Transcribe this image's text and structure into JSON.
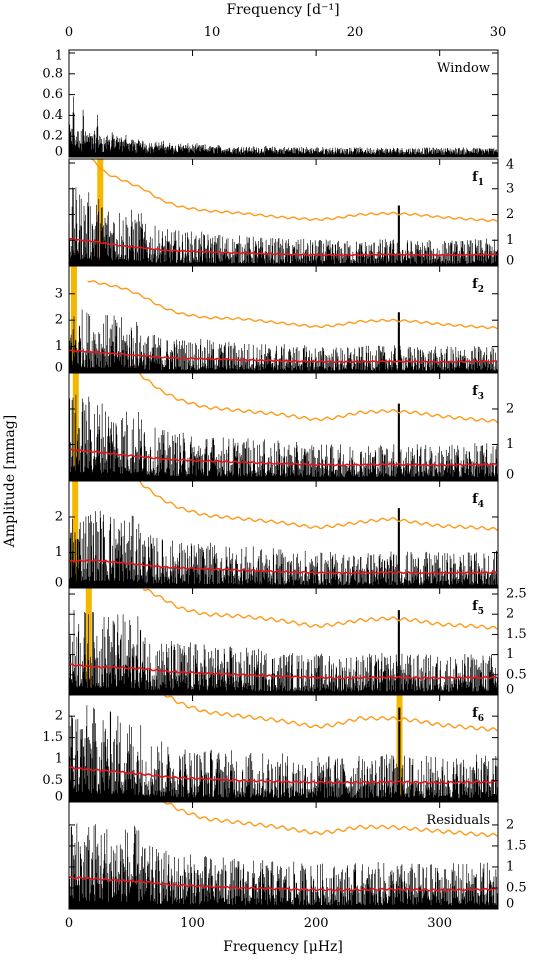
{
  "figure": {
    "xlabel_bottom": "Frequency [μHz]",
    "xlabel_top": "Frequency [d⁻¹]",
    "ylabel": "Amplitude [mmag]",
    "x_ticks_bottom": [
      0,
      100,
      200,
      300
    ],
    "x_ticks_top": [
      0,
      10,
      20,
      30
    ],
    "colors": {
      "spectrum": "#000000",
      "noise": "#e8141e",
      "significance": "#ff9a1a",
      "highlight": "#f5b800"
    }
  },
  "chart_data": [
    {
      "type": "line",
      "panel": "window",
      "label": "Window",
      "label_sub": "",
      "xlim": [
        0,
        347.2
      ],
      "ylim": [
        0,
        1.0
      ],
      "yticks": [
        0,
        0.2,
        0.4,
        0.6,
        0.8,
        1
      ],
      "ytick_labels": [
        "0",
        "0.2",
        "0.4",
        "0.6",
        "0.8",
        "1"
      ],
      "ytick_side": "left",
      "series": [
        {
          "kind": "spectrum",
          "peaks": [
            [
              3.6,
              0.68
            ],
            [
              11.5,
              0.52
            ],
            [
              23.0,
              0.45
            ],
            [
              35,
              0.28
            ],
            [
              46,
              0.25
            ],
            [
              58,
              0.15
            ],
            [
              70,
              0.12
            ],
            [
              81,
              0.1
            ],
            [
              92,
              0.09
            ],
            [
              115,
              0.07
            ],
            [
              138,
              0.06
            ],
            [
              150,
              0.08
            ],
            [
              185,
              0.06
            ],
            [
              230,
              0.06
            ],
            [
              300,
              0.05
            ],
            [
              345,
              0.04
            ]
          ],
          "floor": 0.07,
          "decay": 60
        }
      ]
    },
    {
      "type": "line",
      "panel": "f1",
      "label": "f",
      "label_sub": "1",
      "xlim": [
        0,
        347.2
      ],
      "ylim": [
        0,
        4
      ],
      "yticks": [
        0,
        1,
        2,
        3,
        4
      ],
      "ytick_labels": [
        "0",
        "1",
        "2",
        "3",
        "4"
      ],
      "ytick_side": "right",
      "highlight_x": [
        25.3
      ],
      "significance": {
        "x": [
          15,
          30,
          45,
          60,
          75,
          90,
          110,
          140,
          170,
          200,
          215,
          235,
          260,
          280,
          300,
          330,
          347
        ],
        "y": [
          4.3,
          3.6,
          3.3,
          3.0,
          2.55,
          2.3,
          2.15,
          2.05,
          1.9,
          1.8,
          1.85,
          2.0,
          2.05,
          2.0,
          1.9,
          1.8,
          1.75
        ]
      },
      "noise": {
        "x": [
          0,
          20,
          40,
          60,
          80,
          100,
          140,
          180,
          220,
          260,
          300,
          347
        ],
        "y": [
          1.05,
          0.95,
          0.8,
          0.7,
          0.6,
          0.57,
          0.5,
          0.45,
          0.42,
          0.45,
          0.42,
          0.45
        ]
      },
      "spectrum_peak": 3.95,
      "extra_peaks": [
        [
          267,
          2.35
        ]
      ]
    },
    {
      "type": "line",
      "panel": "f2",
      "label": "f",
      "label_sub": "2",
      "xlim": [
        0,
        347.2
      ],
      "ylim": [
        0,
        3.9
      ],
      "yticks": [
        0,
        1,
        2,
        3
      ],
      "ytick_labels": [
        "0",
        "1",
        "2",
        "3"
      ],
      "ytick_side": "left",
      "highlight_x": [
        4.0
      ],
      "significance": {
        "x": [
          15,
          30,
          45,
          60,
          75,
          90,
          110,
          140,
          170,
          200,
          215,
          235,
          260,
          280,
          300,
          330,
          347
        ],
        "y": [
          3.5,
          3.35,
          3.2,
          2.9,
          2.5,
          2.25,
          2.1,
          2.05,
          1.9,
          1.75,
          1.8,
          1.95,
          2.0,
          1.95,
          1.85,
          1.75,
          1.7
        ]
      },
      "noise": {
        "x": [
          0,
          20,
          40,
          60,
          80,
          100,
          140,
          180,
          220,
          260,
          300,
          347
        ],
        "y": [
          0.85,
          0.8,
          0.72,
          0.65,
          0.58,
          0.55,
          0.5,
          0.45,
          0.42,
          0.44,
          0.42,
          0.44
        ]
      },
      "spectrum_peak": 3.8,
      "extra_peaks": [
        [
          267,
          2.3
        ]
      ]
    },
    {
      "type": "line",
      "panel": "f3",
      "label": "f",
      "label_sub": "3",
      "xlim": [
        0,
        347.2
      ],
      "ylim": [
        0,
        2.9
      ],
      "yticks": [
        0,
        1,
        2
      ],
      "ytick_labels": [
        "0",
        "1",
        "2"
      ],
      "ytick_side": "right",
      "highlight_x": [
        5.5
      ],
      "significance": {
        "x": [
          50,
          60,
          75,
          90,
          110,
          140,
          170,
          200,
          215,
          235,
          260,
          280,
          300,
          330,
          347
        ],
        "y": [
          3.2,
          2.9,
          2.5,
          2.25,
          2.05,
          1.95,
          1.85,
          1.7,
          1.75,
          1.9,
          1.95,
          1.9,
          1.8,
          1.7,
          1.65
        ]
      },
      "noise": {
        "x": [
          0,
          20,
          40,
          60,
          80,
          100,
          140,
          180,
          220,
          260,
          300,
          347
        ],
        "y": [
          0.85,
          0.8,
          0.72,
          0.65,
          0.58,
          0.55,
          0.5,
          0.45,
          0.42,
          0.44,
          0.42,
          0.44
        ]
      },
      "spectrum_peak": 2.85,
      "extra_peaks": [
        [
          267,
          2.15
        ]
      ]
    },
    {
      "type": "line",
      "panel": "f4",
      "label": "f",
      "label_sub": "4",
      "xlim": [
        0,
        347.2
      ],
      "ylim": [
        0,
        2.9
      ],
      "yticks": [
        0,
        1,
        2
      ],
      "ytick_labels": [
        "0",
        "1",
        "2"
      ],
      "ytick_side": "left",
      "highlight_x": [
        5.0
      ],
      "significance": {
        "x": [
          50,
          60,
          75,
          90,
          110,
          140,
          170,
          200,
          215,
          235,
          260,
          280,
          300,
          330,
          347
        ],
        "y": [
          3.2,
          2.9,
          2.5,
          2.25,
          2.05,
          1.95,
          1.85,
          1.7,
          1.75,
          1.85,
          1.95,
          1.85,
          1.75,
          1.7,
          1.65
        ]
      },
      "noise": {
        "x": [
          0,
          20,
          40,
          60,
          80,
          100,
          140,
          180,
          220,
          260,
          300,
          347
        ],
        "y": [
          0.75,
          0.78,
          0.72,
          0.65,
          0.58,
          0.55,
          0.5,
          0.45,
          0.42,
          0.44,
          0.42,
          0.44
        ]
      },
      "spectrum_peak": 2.6,
      "extra_peaks": [
        [
          267,
          2.25
        ]
      ]
    },
    {
      "type": "line",
      "panel": "f5",
      "label": "f",
      "label_sub": "5",
      "xlim": [
        0,
        347.2
      ],
      "ylim": [
        0,
        2.55
      ],
      "yticks": [
        0.5,
        1,
        1.5,
        2,
        2.5
      ],
      "ytick_labels": [
        "0.5",
        "1",
        "1.5",
        "2",
        "2.5"
      ],
      "ytick_side": "right",
      "zero_label": "0",
      "highlight_x": [
        16.0
      ],
      "significance": {
        "x": [
          60,
          75,
          90,
          110,
          140,
          170,
          200,
          215,
          235,
          260,
          280,
          300,
          330,
          347
        ],
        "y": [
          2.65,
          2.4,
          2.15,
          2.0,
          1.95,
          1.85,
          1.7,
          1.75,
          1.85,
          1.9,
          1.85,
          1.75,
          1.7,
          1.65
        ]
      },
      "noise": {
        "x": [
          0,
          20,
          40,
          60,
          80,
          100,
          140,
          180,
          220,
          260,
          300,
          347
        ],
        "y": [
          0.75,
          0.7,
          0.68,
          0.65,
          0.58,
          0.55,
          0.5,
          0.45,
          0.42,
          0.44,
          0.42,
          0.44
        ]
      },
      "spectrum_peak": 2.5,
      "extra_peaks": [
        [
          267,
          2.1
        ]
      ]
    },
    {
      "type": "line",
      "panel": "f6",
      "label": "f",
      "label_sub": "6",
      "xlim": [
        0,
        347.2
      ],
      "ylim": [
        0,
        2.4
      ],
      "yticks": [
        0,
        0.5,
        1,
        1.5,
        2
      ],
      "ytick_labels": [
        "0",
        "0.5",
        "1",
        "1.5",
        "2"
      ],
      "ytick_side": "left",
      "highlight_x": [
        267.5
      ],
      "significance": {
        "x": [
          75,
          90,
          110,
          140,
          170,
          200,
          215,
          235,
          260,
          280,
          300,
          330,
          347
        ],
        "y": [
          2.55,
          2.3,
          2.1,
          2.0,
          1.9,
          1.75,
          1.8,
          1.95,
          1.95,
          1.9,
          1.8,
          1.72,
          1.68
        ]
      },
      "noise": {
        "x": [
          0,
          20,
          40,
          60,
          80,
          100,
          140,
          180,
          220,
          260,
          300,
          347
        ],
        "y": [
          0.8,
          0.75,
          0.7,
          0.65,
          0.58,
          0.55,
          0.5,
          0.47,
          0.45,
          0.47,
          0.45,
          0.47
        ]
      },
      "spectrum_peak": 1.6,
      "extra_peaks": [
        [
          267.5,
          2.2
        ]
      ]
    },
    {
      "type": "line",
      "panel": "residuals",
      "label": "Residuals",
      "label_sub": "",
      "xlim": [
        0,
        347.2
      ],
      "ylim": [
        0,
        2.45
      ],
      "yticks": [
        0,
        0.5,
        1,
        1.5,
        2
      ],
      "ytick_labels": [
        "0",
        "0.5",
        "1",
        "1.5",
        "2"
      ],
      "ytick_side": "right",
      "highlight_x": [],
      "significance": {
        "x": [
          75,
          90,
          110,
          140,
          170,
          200,
          215,
          235,
          260,
          280,
          300,
          330,
          347
        ],
        "y": [
          2.6,
          2.35,
          2.15,
          2.05,
          1.95,
          1.8,
          1.85,
          1.95,
          1.95,
          1.9,
          1.85,
          1.78,
          1.75
        ]
      },
      "noise": {
        "x": [
          0,
          20,
          40,
          60,
          80,
          100,
          140,
          180,
          220,
          260,
          300,
          347
        ],
        "y": [
          0.75,
          0.72,
          0.68,
          0.65,
          0.58,
          0.55,
          0.5,
          0.47,
          0.45,
          0.47,
          0.45,
          0.47
        ]
      },
      "spectrum_peak": 1.5,
      "extra_peaks": []
    }
  ]
}
